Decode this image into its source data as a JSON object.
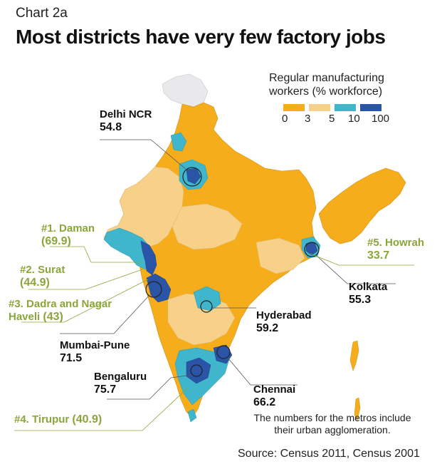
{
  "header": {
    "chart_label": "Chart 2a",
    "title": "Most districts have very few factory jobs"
  },
  "legend": {
    "title_line1": "Regular manufacturing",
    "title_line2": "workers (% workforce)",
    "ticks": [
      "0",
      "3",
      "5",
      "10",
      "100"
    ],
    "colors": [
      "#f5ad1c",
      "#f7d189",
      "#3fb6cc",
      "#2a55a6"
    ]
  },
  "metros": {
    "delhi": {
      "name": "Delhi NCR",
      "value": "54.8"
    },
    "mumbai": {
      "name": "Mumbai-Pune",
      "value": "71.5"
    },
    "bengaluru": {
      "name": "Bengaluru",
      "value": "75.7"
    },
    "chennai": {
      "name": "Chennai",
      "value": "66.2"
    },
    "hyderabad": {
      "name": "Hyderabad",
      "value": "59.2"
    },
    "kolkata": {
      "name": "Kolkata",
      "value": "55.3"
    }
  },
  "top_districts": {
    "daman": {
      "name": "#1. Daman",
      "value": "(69.9)"
    },
    "surat": {
      "name": "#2. Surat",
      "value": "(44.9)"
    },
    "dadra_line1": "#3. Dadra and Nagar",
    "dadra_line2": "Haveli",
    "dadra_value": "(43)",
    "tirupur": {
      "name": "#4. Tirupur",
      "value": "(40.9)"
    },
    "howrah": {
      "name": "#5. Howrah",
      "value": "33.7"
    }
  },
  "note_line1": "The numbers for the metros include",
  "note_line2": "their urban agglomeration.",
  "source": "Source: Census 2011, Census 2001",
  "map_colors": {
    "low": "#f5ad1c",
    "mid": "#f7d189",
    "high": "#3fb6cc",
    "top": "#2a55a6",
    "nodata": "#e9e9ec",
    "green_label": "#8aa63a"
  }
}
